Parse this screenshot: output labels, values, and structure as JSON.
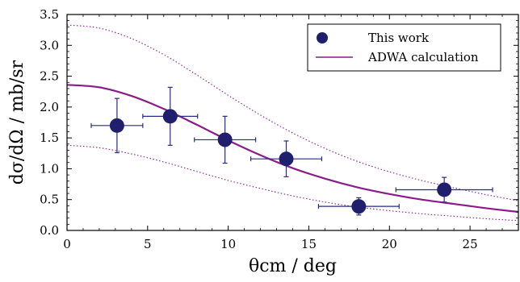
{
  "chart_data": {
    "type": "scatter",
    "xlabel": "θcm / deg",
    "ylabel": "dσ/dΩ / mb/sr",
    "xlim": [
      0,
      28
    ],
    "ylim": [
      0,
      3.5
    ],
    "xticks": [
      0,
      5,
      10,
      15,
      20,
      25
    ],
    "yticks": [
      0.0,
      0.5,
      1.0,
      1.5,
      2.0,
      2.5,
      3.0,
      3.5
    ],
    "xtick_labels": [
      "0",
      "5",
      "10",
      "15",
      "20",
      "25"
    ],
    "ytick_labels": [
      "0.0",
      "0.5",
      "1.0",
      "1.5",
      "2.0",
      "2.5",
      "3.0",
      "3.5"
    ],
    "legend_position": "top-right",
    "grid": false,
    "series": [
      {
        "name": "This work",
        "kind": "points",
        "color": "#1f1f6e",
        "points": [
          {
            "x": 3.1,
            "y": 1.7,
            "xerr": 1.6,
            "yerr": 0.44
          },
          {
            "x": 6.4,
            "y": 1.85,
            "xerr": 1.7,
            "yerr": 0.47
          },
          {
            "x": 9.8,
            "y": 1.47,
            "xerr": 1.9,
            "yerr": 0.38
          },
          {
            "x": 13.6,
            "y": 1.16,
            "xerr": 2.2,
            "yerr": 0.29
          },
          {
            "x": 18.1,
            "y": 0.39,
            "xerr": 2.5,
            "yerr": 0.14
          },
          {
            "x": 23.4,
            "y": 0.66,
            "xerr": 3.0,
            "yerr": 0.2
          }
        ]
      },
      {
        "name": "ADWA calculation",
        "kind": "line",
        "color": "#8b1a8b",
        "x": [
          0,
          2,
          4,
          6,
          8,
          10,
          12,
          14,
          16,
          18,
          20,
          22,
          24,
          26,
          28
        ],
        "y": [
          2.36,
          2.32,
          2.18,
          1.97,
          1.72,
          1.46,
          1.22,
          1.01,
          0.84,
          0.7,
          0.59,
          0.5,
          0.43,
          0.36,
          0.3
        ]
      },
      {
        "kind": "band-upper",
        "color": "#8b1a8b",
        "x": [
          0,
          2,
          4,
          6,
          8,
          10,
          12,
          14,
          16,
          18,
          20,
          22,
          24,
          26,
          28
        ],
        "y": [
          3.33,
          3.28,
          3.11,
          2.85,
          2.53,
          2.19,
          1.87,
          1.58,
          1.33,
          1.12,
          0.95,
          0.81,
          0.69,
          0.58,
          0.48
        ]
      },
      {
        "kind": "band-lower",
        "color": "#8b1a8b",
        "x": [
          0,
          2,
          4,
          6,
          8,
          10,
          12,
          14,
          16,
          18,
          20,
          22,
          24,
          26,
          28
        ],
        "y": [
          1.38,
          1.34,
          1.24,
          1.11,
          0.96,
          0.81,
          0.68,
          0.56,
          0.46,
          0.38,
          0.32,
          0.27,
          0.23,
          0.19,
          0.16
        ]
      }
    ],
    "legend": [
      {
        "label": "This work",
        "symbol": "marker"
      },
      {
        "label": "ADWA calculation",
        "symbol": "line"
      }
    ]
  }
}
